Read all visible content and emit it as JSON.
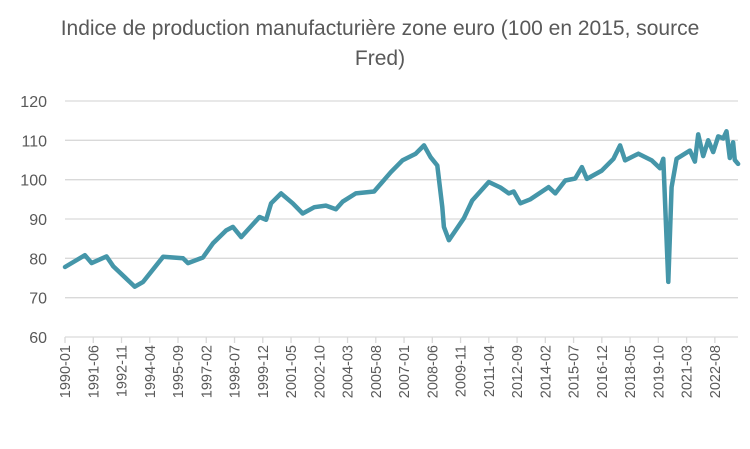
{
  "chart_data": {
    "type": "line",
    "title": "Indice de production manufacturière zone euro (100 en 2015, source Fred)",
    "xlabel": "",
    "ylabel": "",
    "ylim": [
      60,
      120
    ],
    "yticks": [
      60,
      70,
      80,
      90,
      100,
      110,
      120
    ],
    "grid": true,
    "legend": "none",
    "line_color": "#4596A9",
    "xtick_labels": [
      "1990-01",
      "1991-06",
      "1992-11",
      "1994-04",
      "1995-09",
      "1997-02",
      "1998-07",
      "1999-12",
      "2001-05",
      "2002-10",
      "2004-03",
      "2005-08",
      "2007-01",
      "2008-06",
      "2009-11",
      "2011-04",
      "2012-09",
      "2014-02",
      "2015-07",
      "2016-12",
      "2018-05",
      "2019-10",
      "2021-03",
      "2022-08"
    ],
    "series": [
      {
        "x": [
          "1990-01",
          "1991-01",
          "1991-05",
          "1992-02",
          "1992-06",
          "1993-07",
          "1993-12",
          "1994-12",
          "1995-12",
          "1996-03",
          "1996-12",
          "1997-06",
          "1998-02",
          "1998-06",
          "1998-11",
          "1999-10",
          "2000-02",
          "2000-05",
          "2000-11",
          "2001-06",
          "2001-12",
          "2002-07",
          "2003-02",
          "2003-08",
          "2003-12",
          "2004-08",
          "2005-07",
          "2006-05",
          "2006-12",
          "2007-08",
          "2008-01",
          "2008-05",
          "2008-09",
          "2008-12",
          "2009-01",
          "2009-04",
          "2009-08",
          "2010-01",
          "2010-06",
          "2011-04",
          "2011-11",
          "2012-04",
          "2012-07",
          "2012-11",
          "2013-05",
          "2014-04",
          "2014-08",
          "2015-02",
          "2015-08",
          "2015-12",
          "2016-03",
          "2016-12",
          "2017-07",
          "2017-11",
          "2018-02",
          "2018-10",
          "2019-06",
          "2019-11",
          "2020-01",
          "2020-04",
          "2020-06",
          "2020-09",
          "2021-05",
          "2021-08",
          "2021-10",
          "2022-01",
          "2022-04",
          "2022-07",
          "2022-10",
          "2023-01",
          "2023-03",
          "2023-05",
          "2023-07",
          "2023-08",
          "2023-10"
        ],
        "y": [
          77.8,
          80.8,
          78.8,
          80.5,
          78,
          72.8,
          74,
          80.4,
          80,
          78.8,
          80.2,
          83.8,
          87.1,
          88,
          85.4,
          90.5,
          89.8,
          94,
          96.5,
          94,
          91.4,
          93,
          93.4,
          92.5,
          94.4,
          96.5,
          97,
          101.9,
          104.9,
          106.6,
          108.7,
          105.7,
          103.6,
          93,
          88,
          84.6,
          87.1,
          90.2,
          94.7,
          99.4,
          98,
          96.5,
          97,
          94,
          95,
          98.1,
          96.5,
          99.8,
          100.3,
          103.2,
          100.2,
          102.3,
          105.3,
          108.7,
          104.9,
          106.6,
          104.9,
          102.9,
          105.3,
          74,
          98.1,
          105.3,
          107.4,
          104.6,
          111.5,
          106,
          110,
          107,
          111,
          110.5,
          112.3,
          105.5,
          109.5,
          105,
          104
        ]
      }
    ]
  }
}
